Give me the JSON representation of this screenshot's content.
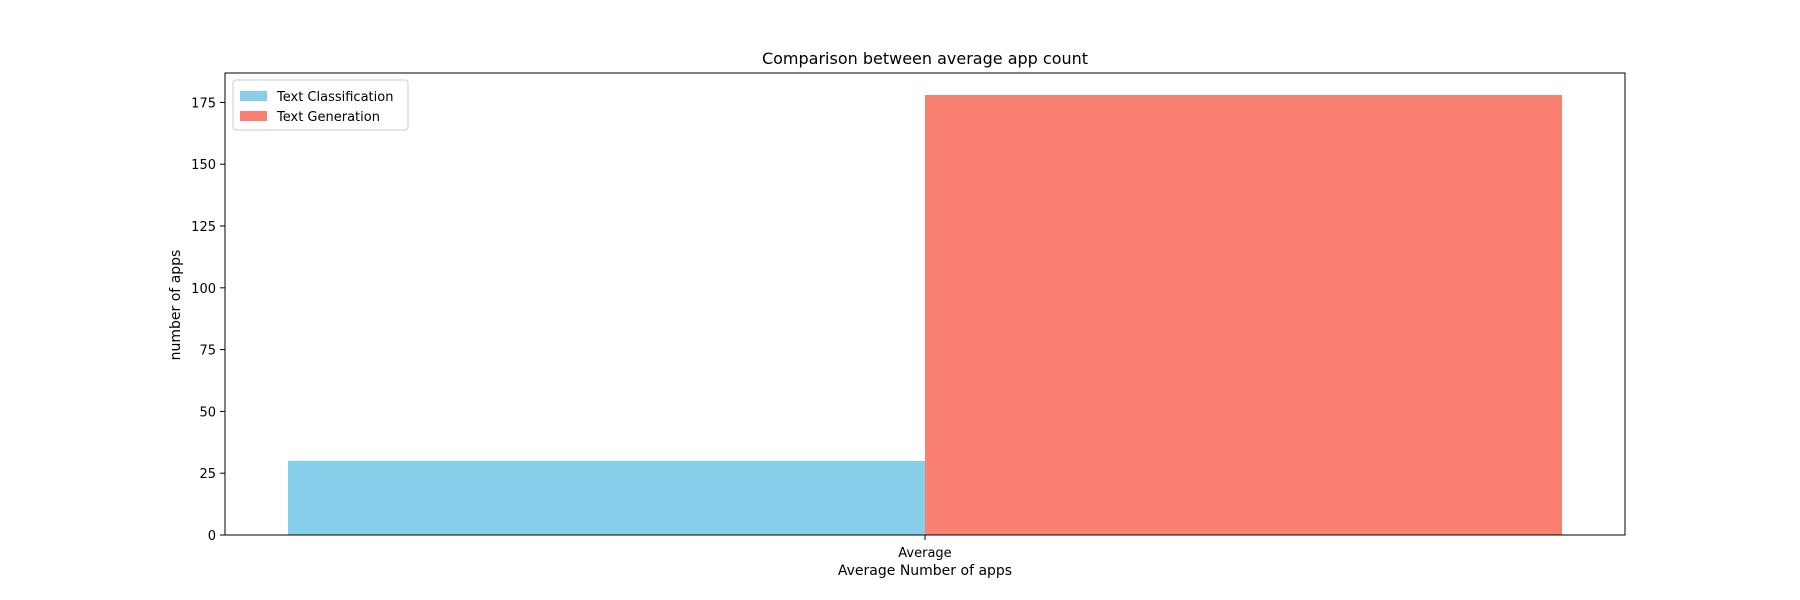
{
  "chart_data": {
    "type": "bar",
    "title": "Comparison between average app count",
    "xlabel": "Average Number of apps",
    "ylabel": "number of apps",
    "categories": [
      "Average"
    ],
    "series": [
      {
        "name": "Text Classification",
        "values": [
          30
        ],
        "color": "#87CEEB"
      },
      {
        "name": "Text Generation",
        "values": [
          178
        ],
        "color": "#FA8072"
      }
    ],
    "ylim": [
      0,
      186.9
    ],
    "yticks": [
      0,
      25,
      50,
      75,
      100,
      125,
      150,
      175
    ],
    "legend_position": "top-left",
    "grid": false
  }
}
